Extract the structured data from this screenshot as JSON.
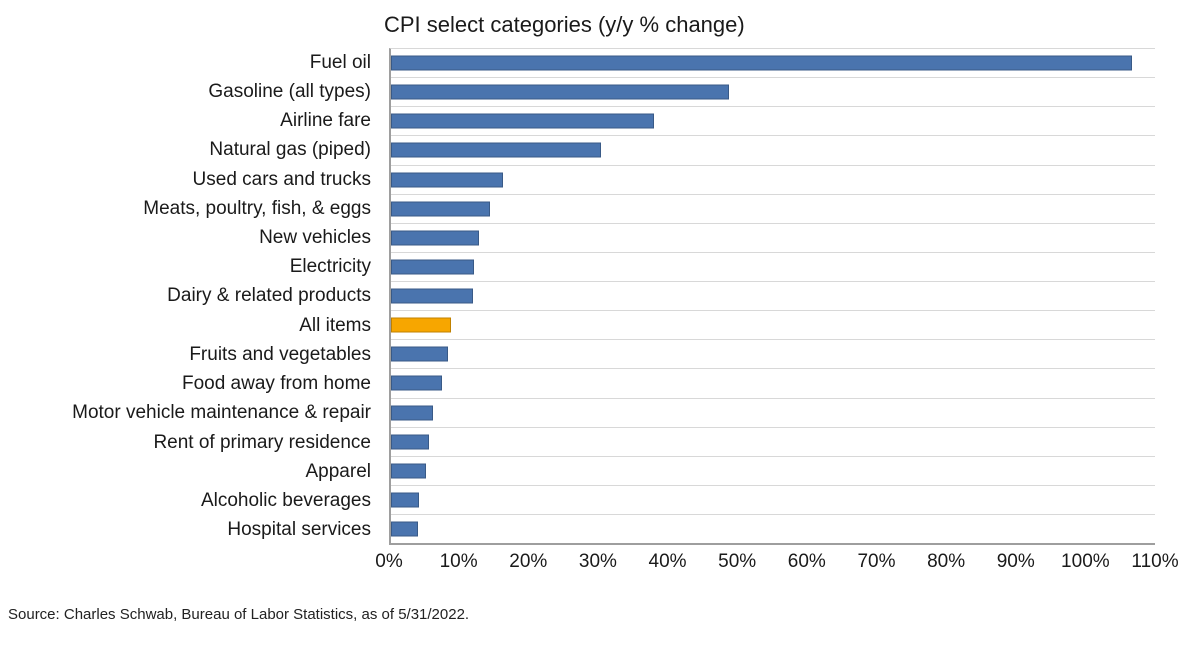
{
  "source_note": "Source: Charles Schwab, Bureau of Labor Statistics, as of 5/31/2022.",
  "chart_data": {
    "type": "bar",
    "orientation": "horizontal",
    "title": "CPI select categories (y/y % change)",
    "xlabel": "",
    "ylabel": "",
    "categories": [
      "Fuel oil",
      "Gasoline (all types)",
      "Airline fare",
      "Natural gas (piped)",
      "Used cars and trucks",
      "Meats, poultry, fish, & eggs",
      "New vehicles",
      "Electricity",
      "Dairy & related products",
      "All items",
      "Fruits and vegetables",
      "Food away from home",
      "Motor vehicle maintenance & repair",
      "Rent of primary residence",
      "Apparel",
      "Alcoholic beverages",
      "Hospital services"
    ],
    "values": [
      106.7,
      48.7,
      37.8,
      30.2,
      16.1,
      14.2,
      12.6,
      12.0,
      11.8,
      8.6,
      8.2,
      7.4,
      6.1,
      5.5,
      5.0,
      4.0,
      3.9
    ],
    "highlight_category": "All items",
    "xlim": [
      0,
      110
    ],
    "x_tick_labels": [
      "0%",
      "10%",
      "20%",
      "30%",
      "40%",
      "50%",
      "60%",
      "70%",
      "80%",
      "90%",
      "100%",
      "110%"
    ],
    "grid": "horizontal category separators only",
    "legend": "none",
    "colors": {
      "bar": "#4a74ae",
      "highlight": "#f7a600",
      "gridline": "#d8d8d8",
      "axis": "#9e9e9e"
    }
  }
}
